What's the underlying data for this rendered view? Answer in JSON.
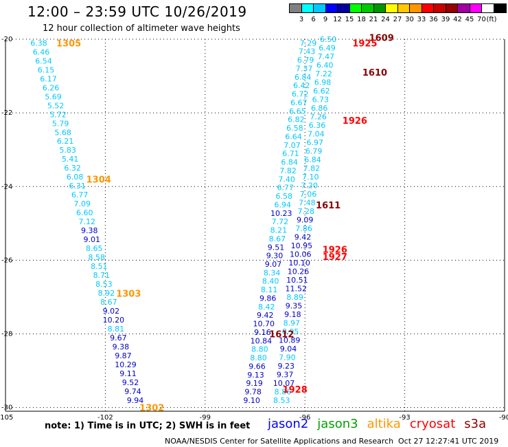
{
  "title": "12:00 – 23:59 UTC 10/26/2019",
  "subtitle": "12 hour collection of altimeter wave heights",
  "scale": {
    "unit": "(ft)",
    "bins": [
      {
        "label": "",
        "color": "#808080"
      },
      {
        "label": "3",
        "color": "#00ffff"
      },
      {
        "label": "6",
        "color": "#00c8ff"
      },
      {
        "label": "9",
        "color": "#0000ff"
      },
      {
        "label": "12",
        "color": "#0000a0"
      },
      {
        "label": "15",
        "color": "#00ff00"
      },
      {
        "label": "18",
        "color": "#00c800"
      },
      {
        "label": "21",
        "color": "#009600"
      },
      {
        "label": "24",
        "color": "#ffff00"
      },
      {
        "label": "27",
        "color": "#ffc800"
      },
      {
        "label": "30",
        "color": "#ff9600"
      },
      {
        "label": "33",
        "color": "#ff0000"
      },
      {
        "label": "36",
        "color": "#c80000"
      },
      {
        "label": "39",
        "color": "#960000"
      },
      {
        "label": "42",
        "color": "#a000a0"
      },
      {
        "label": "45",
        "color": "#ff00ff"
      },
      {
        "label": "70",
        "color": "#ffffff"
      },
      {
        "label": "",
        "color": "#000000"
      }
    ]
  },
  "map": {
    "lon_range": [
      -105,
      -90
    ],
    "lat_range": [
      -30.1,
      -20
    ],
    "lon_ticks": [
      -105,
      -102,
      -99,
      -96,
      -93,
      -90
    ],
    "lat_ticks": [
      -20,
      -22,
      -24,
      -26,
      -28,
      -30
    ],
    "grid": "dotted"
  },
  "colors": {
    "swh_low": "#00c8ff",
    "swh_high": "#0000c8",
    "jason2": "#0000ff",
    "jason3": "#00a000",
    "altika": "#ff9600",
    "cryosat": "#ff0000",
    "s3a": "#8b0000"
  },
  "tracks": [
    {
      "satellite": "altika",
      "start": {
        "lon": -104.0,
        "lat": -20.1
      },
      "end": {
        "lon": -101.1,
        "lat": -29.8
      },
      "values": [
        "6.38",
        "6.46",
        "6.54",
        "6.15",
        "6.17",
        "6.26",
        "5.69",
        "5.52",
        "5.72",
        "5.79",
        "5.68",
        "6.21",
        "5.83",
        "5.41",
        "6.32",
        "6.08",
        "6.31",
        "6.77",
        "7.09",
        "6.60",
        "7.12",
        "9.38",
        "9.01",
        "8.65",
        "8.58",
        "8.51",
        "8.71",
        "8.53",
        "8.92",
        "8.67",
        "9.02",
        "10.20",
        "8.81",
        "9.67",
        "9.38",
        "9.87",
        "10.29",
        "9.11",
        "9.52",
        "9.74",
        "9.94"
      ]
    },
    {
      "satellite": "jason2",
      "start": {
        "lon": -95.9,
        "lat": -20.1
      },
      "end": {
        "lon": -97.6,
        "lat": -29.8
      },
      "values": [
        "7.29",
        "7.43",
        "6.79",
        "7.37",
        "6.84",
        "6.42",
        "6.72",
        "6.67",
        "6.65",
        "6.82",
        "6.58",
        "6.64",
        "7.07",
        "6.71",
        "6.84",
        "7.82",
        "7.40",
        "6.77",
        "6.58",
        "6.94",
        "10.23",
        "7.72",
        "8.21",
        "8.67",
        "9.51",
        "9.30",
        "9.07",
        "8.34",
        "8.40",
        "8.11",
        "9.86",
        "8.42",
        "9.42",
        "10.70",
        "9.16",
        "10.84",
        "8.80",
        "8.80",
        "9.66",
        "9.13",
        "9.19",
        "9.78",
        "9.10"
      ]
    },
    {
      "satellite": "jason3",
      "start": {
        "lon": -95.3,
        "lat": -20.0
      },
      "end": {
        "lon": -96.7,
        "lat": -29.8
      },
      "values": [
        "6.50",
        "6.49",
        "7.47",
        "6.40",
        "7.22",
        "6.98",
        "6.62",
        "6.73",
        "6.86",
        "7.26",
        "6.36",
        "7.04",
        "6.97",
        "6.79",
        "6.84",
        "7.82",
        "7.10",
        "7.20",
        "7.06",
        "7.48",
        "7.28",
        "9.09",
        "7.86",
        "9.42",
        "10.95",
        "10.06",
        "10.10",
        "10.26",
        "10.51",
        "11.52",
        "8.89",
        "9.35",
        "9.18",
        "8.97",
        "8.95",
        "10.89",
        "9.04",
        "7.90",
        "9.23",
        "9.37",
        "10.07",
        "8.86",
        "8.53"
      ]
    }
  ],
  "labels": [
    {
      "text": "1305",
      "lon": -103.1,
      "lat": -20.1,
      "satellite": "altika"
    },
    {
      "text": "1304",
      "lon": -102.2,
      "lat": -23.8,
      "satellite": "altika"
    },
    {
      "text": "1303",
      "lon": -101.3,
      "lat": -26.9,
      "satellite": "altika"
    },
    {
      "text": "1302",
      "lon": -100.6,
      "lat": -30.0,
      "satellite": "altika"
    },
    {
      "text": "1609",
      "lon": -93.7,
      "lat": -19.95,
      "satellite": "s3a"
    },
    {
      "text": "1925",
      "lon": -94.2,
      "lat": -20.1,
      "satellite": "cryosat"
    },
    {
      "text": "1610",
      "lon": -93.9,
      "lat": -20.9,
      "satellite": "s3a"
    },
    {
      "text": "1926",
      "lon": -94.5,
      "lat": -22.2,
      "satellite": "cryosat"
    },
    {
      "text": "1611",
      "lon": -95.3,
      "lat": -24.5,
      "satellite": "s3a"
    },
    {
      "text": "1926",
      "lon": -95.1,
      "lat": -25.7,
      "satellite": "cryosat"
    },
    {
      "text": "1927",
      "lon": -95.1,
      "lat": -25.9,
      "satellite": "cryosat"
    },
    {
      "text": "1612",
      "lon": -96.7,
      "lat": -28.0,
      "satellite": "s3a"
    },
    {
      "text": "1928",
      "lon": -96.3,
      "lat": -29.5,
      "satellite": "cryosat"
    }
  ],
  "note": "note:  1) Time is in UTC;  2) SWH is in feet",
  "legend": [
    {
      "text": "jason2",
      "satellite": "jason2"
    },
    {
      "text": "jason3",
      "satellite": "jason3"
    },
    {
      "text": "altika",
      "satellite": "altika"
    },
    {
      "text": "cryosat",
      "satellite": "cryosat"
    },
    {
      "text": "s3a",
      "satellite": "s3a"
    }
  ],
  "credit": "NOAA/NESDIS Center for Satellite Applications and Research",
  "generated": "Oct 27 12:27:41 UTC 2019"
}
